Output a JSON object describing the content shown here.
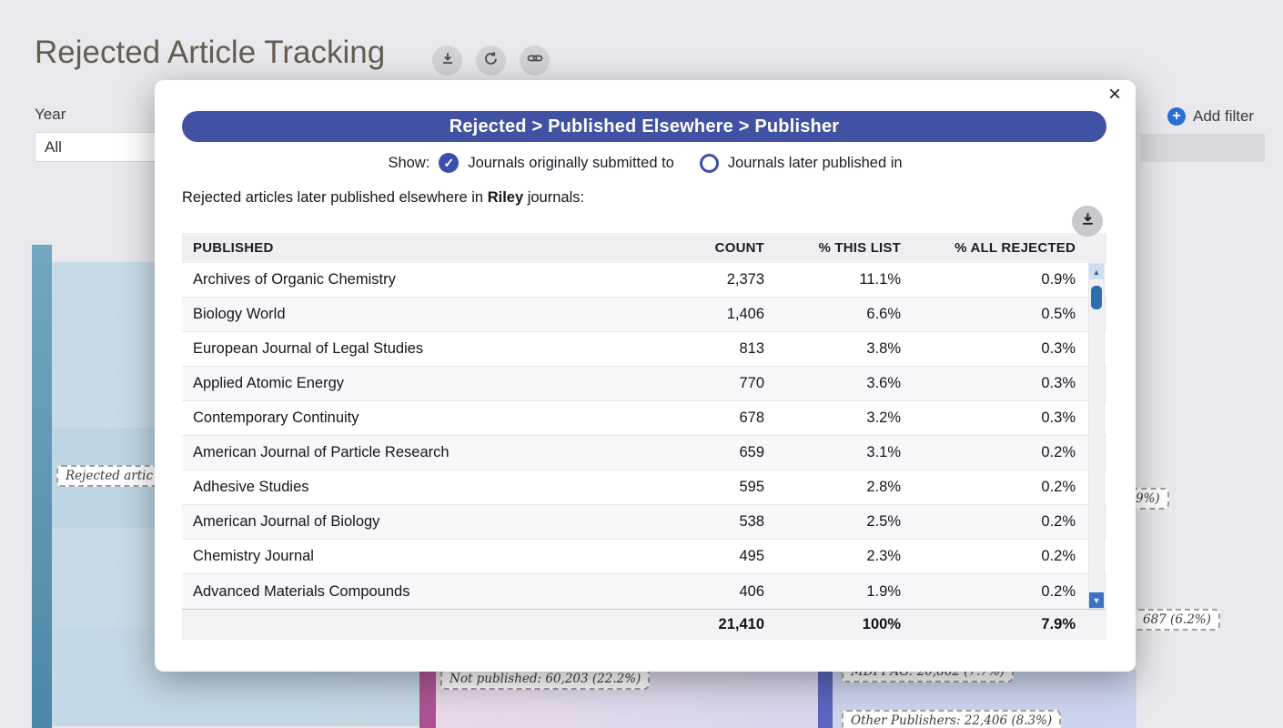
{
  "page": {
    "title": "Rejected Article Tracking",
    "filters": {
      "year_label": "Year",
      "year_value": "All",
      "add_filter_label": "Add filter"
    },
    "sankey_labels": {
      "rejected_partial": "Rejected artic",
      "not_published": "Not published: 60,203 (22.2%)",
      "publisher_mid": "MDPI AG: 20,862 (7.7%)",
      "other_publishers": "Other Publishers: 22,406 (8.3%)",
      "fragment_687": "687 (6.2%)",
      "fragment_9": "9%)"
    }
  },
  "modal": {
    "close_glyph": "×",
    "header": "Rejected > Published Elsewhere > Publisher",
    "show_label": "Show:",
    "radio_options": [
      {
        "label": "Journals originally submitted to",
        "selected": true
      },
      {
        "label": "Journals later published in",
        "selected": false
      }
    ],
    "description_prefix": "Rejected articles later published elsewhere in ",
    "description_bold": "Riley",
    "description_suffix": " journals:",
    "table": {
      "columns": [
        "PUBLISHED",
        "COUNT",
        "% THIS LIST",
        "% ALL REJECTED"
      ],
      "rows": [
        [
          "Archives of Organic Chemistry",
          "2,373",
          "11.1%",
          "0.9%"
        ],
        [
          "Biology World",
          "1,406",
          "6.6%",
          "0.5%"
        ],
        [
          "European Journal of Legal Studies",
          "813",
          "3.8%",
          "0.3%"
        ],
        [
          "Applied Atomic Energy",
          "770",
          "3.6%",
          "0.3%"
        ],
        [
          "Contemporary Continuity",
          "678",
          "3.2%",
          "0.3%"
        ],
        [
          "American Journal of Particle Research",
          "659",
          "3.1%",
          "0.2%"
        ],
        [
          "Adhesive Studies",
          "595",
          "2.8%",
          "0.2%"
        ],
        [
          "American Journal of Biology",
          "538",
          "2.5%",
          "0.2%"
        ],
        [
          "Chemistry Journal",
          "495",
          "2.3%",
          "0.2%"
        ],
        [
          "Advanced Materials Compounds",
          "406",
          "1.9%",
          "0.2%"
        ]
      ],
      "footer": [
        "",
        "21,410",
        "100%",
        "7.9%"
      ]
    }
  },
  "icons": {
    "check": "✓",
    "plus": "+",
    "up_arrow": "▲",
    "down_arrow": "▼"
  },
  "colors": {
    "modal_header_blue": "#4152a4",
    "radio_blue": "#3a4eae",
    "scrollbar_blue": "#2f6bb0",
    "sankey_teal": "#4d86a6",
    "sankey_pink": "#a9518f",
    "sankey_indigo": "#5a66bf",
    "add_filter_blue": "#2a6fd6"
  }
}
